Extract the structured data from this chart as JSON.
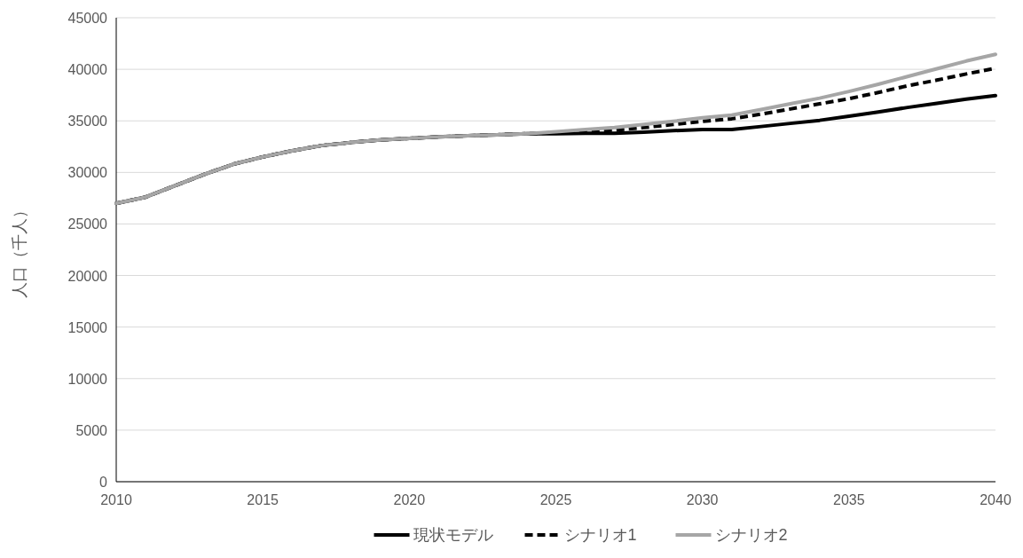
{
  "chart_data": {
    "type": "line",
    "ylabel": "人口（千人）",
    "x": [
      2010,
      2011,
      2012,
      2013,
      2014,
      2015,
      2016,
      2017,
      2018,
      2019,
      2020,
      2021,
      2022,
      2023,
      2024,
      2025,
      2026,
      2027,
      2028,
      2029,
      2030,
      2031,
      2032,
      2033,
      2034,
      2035,
      2036,
      2037,
      2038,
      2039,
      2040
    ],
    "series": [
      {
        "name": "現状モデル",
        "color": "#000000",
        "line_style": "solid",
        "values": [
          27000,
          27600,
          28700,
          29800,
          30800,
          31500,
          32100,
          32600,
          32900,
          33150,
          33300,
          33450,
          33550,
          33650,
          33750,
          33750,
          33800,
          33800,
          33900,
          34050,
          34150,
          34150,
          34450,
          34750,
          35050,
          35450,
          35850,
          36300,
          36700,
          37100,
          37450
        ]
      },
      {
        "name": "シナリオ1",
        "color": "#000000",
        "line_style": "dashed",
        "values": [
          27000,
          27600,
          28700,
          29800,
          30800,
          31500,
          32100,
          32600,
          32900,
          33150,
          33300,
          33450,
          33550,
          33650,
          33750,
          33850,
          33950,
          34100,
          34350,
          34650,
          34950,
          35200,
          35650,
          36150,
          36650,
          37150,
          37750,
          38400,
          38950,
          39550,
          40100
        ]
      },
      {
        "name": "シナリオ2",
        "color": "#a6a6a6",
        "line_style": "solid",
        "values": [
          27000,
          27600,
          28700,
          29800,
          30800,
          31500,
          32100,
          32600,
          32900,
          33150,
          33300,
          33450,
          33550,
          33650,
          33750,
          33950,
          34150,
          34350,
          34650,
          34950,
          35300,
          35550,
          36100,
          36650,
          37200,
          37850,
          38550,
          39300,
          40050,
          40800,
          41450
        ]
      }
    ],
    "xlim": [
      2010,
      2040
    ],
    "xticks": [
      2010,
      2015,
      2020,
      2025,
      2030,
      2035,
      2040
    ],
    "ylim": [
      0,
      45000
    ],
    "yticks": [
      0,
      5000,
      10000,
      15000,
      20000,
      25000,
      30000,
      35000,
      40000,
      45000
    ],
    "grid": "y",
    "legend": "bottom"
  }
}
